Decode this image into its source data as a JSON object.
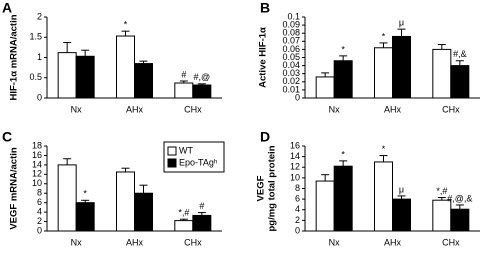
{
  "chart_data": [
    {
      "type": "bar",
      "panel": "A",
      "ylabel": "HIF-1α mRNA/actin",
      "categories": [
        "Nx",
        "AHx",
        "CHx"
      ],
      "ylim": [
        0,
        2
      ],
      "yticks": [
        0,
        0.5,
        1,
        1.5,
        2
      ],
      "series": [
        {
          "name": "WT",
          "color": "#ffffff",
          "values": [
            1.12,
            1.53,
            0.37
          ],
          "errors": [
            0.25,
            0.12,
            0.05
          ],
          "annotations": [
            null,
            "*",
            "#"
          ]
        },
        {
          "name": "Epo-TAgʰ",
          "color": "#000000",
          "values": [
            1.03,
            0.85,
            0.32
          ],
          "errors": [
            0.15,
            0.06,
            0.03
          ],
          "annotations": [
            null,
            null,
            "#,@"
          ]
        }
      ]
    },
    {
      "type": "bar",
      "panel": "B",
      "ylabel": "Active HIF-1α",
      "categories": [
        "Nx",
        "AHx",
        "CHx"
      ],
      "ylim": [
        0,
        0.1
      ],
      "yticks": [
        0,
        0.01,
        0.02,
        0.03,
        0.04,
        0.05,
        0.06,
        0.07,
        0.08,
        0.09,
        0.1
      ],
      "series": [
        {
          "name": "WT",
          "color": "#ffffff",
          "values": [
            0.026,
            0.062,
            0.06
          ],
          "errors": [
            0.005,
            0.006,
            0.006
          ],
          "annotations": [
            null,
            "*",
            null
          ]
        },
        {
          "name": "Epo-TAgʰ",
          "color": "#000000",
          "values": [
            0.046,
            0.076,
            0.04
          ],
          "errors": [
            0.006,
            0.009,
            0.006
          ],
          "annotations": [
            "*",
            "μ",
            "#,&"
          ]
        }
      ]
    },
    {
      "type": "bar",
      "panel": "C",
      "ylabel": "VEGF mRNA/actin",
      "legend": "upper right",
      "categories": [
        "Nx",
        "AHx",
        "CHx"
      ],
      "ylim": [
        0,
        18
      ],
      "yticks": [
        0,
        2,
        4,
        6,
        8,
        10,
        12,
        14,
        16,
        18
      ],
      "series": [
        {
          "name": "WT",
          "color": "#ffffff",
          "values": [
            14,
            12.5,
            2.2
          ],
          "errors": [
            1.3,
            0.8,
            0.3
          ],
          "annotations": [
            null,
            null,
            "*,#"
          ]
        },
        {
          "name": "Epo-TAgʰ",
          "color": "#000000",
          "values": [
            6,
            8,
            3.3
          ],
          "errors": [
            0.5,
            1.7,
            0.6
          ],
          "annotations": [
            "*",
            null,
            "#"
          ]
        }
      ]
    },
    {
      "type": "bar",
      "panel": "D",
      "ylabel": [
        "VEGF",
        "pg/mg total protein"
      ],
      "categories": [
        "Nx",
        "AHx",
        "CHx"
      ],
      "ylim": [
        0,
        16
      ],
      "yticks": [
        0,
        2,
        4,
        6,
        8,
        10,
        12,
        14,
        16
      ],
      "series": [
        {
          "name": "WT",
          "color": "#ffffff",
          "values": [
            9.4,
            13,
            5.8
          ],
          "errors": [
            1.2,
            1.2,
            0.5
          ],
          "annotations": [
            null,
            "*",
            "*,#"
          ]
        },
        {
          "name": "Epo-TAgʰ",
          "color": "#000000",
          "values": [
            12.2,
            6,
            4.1
          ],
          "errors": [
            1,
            0.6,
            0.8
          ],
          "annotations": [
            "*",
            "μ",
            "#,@,&"
          ]
        }
      ]
    }
  ]
}
